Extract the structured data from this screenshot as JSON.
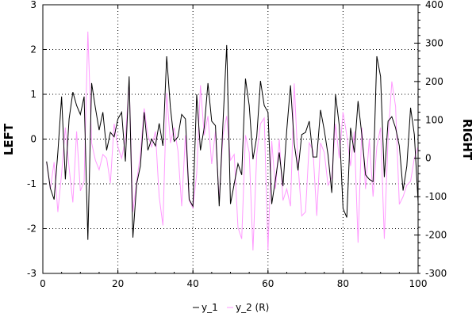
{
  "chart_data": {
    "type": "line",
    "x": [
      1,
      2,
      3,
      4,
      5,
      6,
      7,
      8,
      9,
      10,
      11,
      12,
      13,
      14,
      15,
      16,
      17,
      18,
      19,
      20,
      21,
      22,
      23,
      24,
      25,
      26,
      27,
      28,
      29,
      30,
      31,
      32,
      33,
      34,
      35,
      36,
      37,
      38,
      39,
      40,
      41,
      42,
      43,
      44,
      45,
      46,
      47,
      48,
      49,
      50,
      51,
      52,
      53,
      54,
      55,
      56,
      57,
      58,
      59,
      60,
      61,
      62,
      63,
      64,
      65,
      66,
      67,
      68,
      69,
      70,
      71,
      72,
      73,
      74,
      75,
      76,
      77,
      78,
      79,
      80,
      81,
      82,
      83,
      84,
      85,
      86,
      87,
      88,
      89,
      90,
      91,
      92,
      93,
      94,
      95,
      96,
      97,
      98,
      99,
      100
    ],
    "series": [
      {
        "name": "y_1",
        "axis": "left",
        "color": "#000000",
        "values": [
          -0.5,
          -1.1,
          -1.35,
          -0.3,
          0.95,
          -0.9,
          0.45,
          1.05,
          0.75,
          0.55,
          0.95,
          -2.25,
          1.25,
          0.7,
          0.2,
          0.6,
          -0.25,
          0.15,
          0.05,
          0.45,
          0.6,
          -0.5,
          1.4,
          -2.2,
          -1.0,
          -0.6,
          0.6,
          -0.25,
          0.0,
          -0.15,
          0.35,
          -0.15,
          1.85,
          0.7,
          -0.05,
          0.05,
          0.55,
          0.45,
          -1.35,
          -1.5,
          1.0,
          -0.25,
          0.25,
          1.25,
          0.4,
          0.3,
          -1.5,
          0.35,
          2.1,
          -1.45,
          -1.0,
          -0.55,
          -0.8,
          1.35,
          0.75,
          -0.45,
          0.05,
          1.3,
          0.75,
          0.6,
          -1.45,
          -0.9,
          -0.3,
          -1.05,
          0.2,
          1.2,
          -0.1,
          -0.7,
          0.1,
          0.15,
          0.4,
          -0.4,
          -0.4,
          0.65,
          0.2,
          -0.35,
          -1.2,
          1.0,
          0.3,
          -1.55,
          -1.75,
          0.25,
          -0.3,
          0.85,
          0.1,
          -0.8,
          -0.9,
          -0.95,
          1.85,
          1.4,
          -0.85,
          0.4,
          0.5,
          0.25,
          -0.15,
          -1.15,
          -0.6,
          0.7,
          0.1,
          -1.4
        ]
      },
      {
        "name": "y_2 (R)",
        "axis": "right",
        "color": "#ff99ff",
        "values": [
          -10,
          -80,
          -10,
          -140,
          -40,
          80,
          -25,
          -115,
          70,
          -85,
          -60,
          330,
          40,
          -5,
          -30,
          10,
          0,
          -65,
          90,
          30,
          0,
          50,
          200,
          -140,
          -60,
          10,
          130,
          60,
          30,
          70,
          -100,
          -175,
          170,
          40,
          80,
          20,
          -125,
          60,
          -110,
          -130,
          -40,
          190,
          60,
          110,
          -15,
          70,
          -110,
          60,
          110,
          -5,
          10,
          -180,
          -210,
          60,
          15,
          -240,
          10,
          90,
          105,
          -240,
          45,
          -80,
          50,
          -110,
          -80,
          -125,
          195,
          -15,
          -150,
          -140,
          40,
          20,
          -150,
          40,
          15,
          -70,
          -50,
          90,
          0,
          120,
          60,
          -20,
          70,
          -220,
          80,
          -80,
          50,
          -100,
          30,
          80,
          -210,
          50,
          200,
          135,
          -120,
          -100,
          -70,
          -60,
          0,
          30
        ]
      }
    ],
    "xlim": [
      0,
      100
    ],
    "ylim_left": [
      -3,
      3
    ],
    "ylim_right": [
      -300,
      400
    ],
    "xticks": [
      "0",
      "20",
      "40",
      "60",
      "80",
      "100"
    ],
    "yticks_left": [
      "-3",
      "-2",
      "-1",
      "0",
      "1",
      "2",
      "3"
    ],
    "yticks_right": [
      "-300",
      "-200",
      "-100",
      "0",
      "100",
      "200",
      "300",
      "400"
    ],
    "ylabel_left": "LEFT",
    "ylabel_right": "RIGHT",
    "grid": true,
    "legend": [
      "y_1",
      "y_2 (R)"
    ],
    "legend_placement": "bottom"
  }
}
